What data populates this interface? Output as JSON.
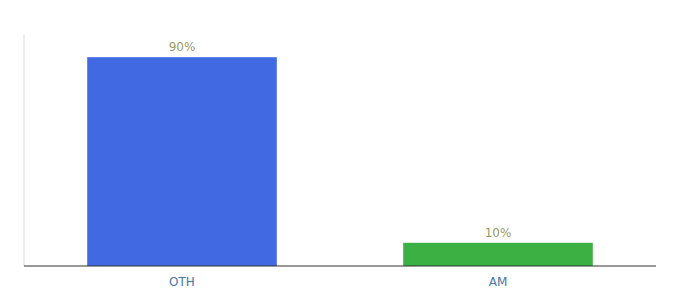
{
  "chart_data": {
    "type": "bar",
    "categories": [
      "OTH",
      "AM"
    ],
    "values": [
      90,
      10
    ],
    "value_labels": [
      "90%",
      "10%"
    ],
    "colors": [
      "#4169e1",
      "#3cb043"
    ],
    "ylim": [
      0,
      100
    ],
    "data_labels": true,
    "tick_labels": "x",
    "grid": false
  }
}
